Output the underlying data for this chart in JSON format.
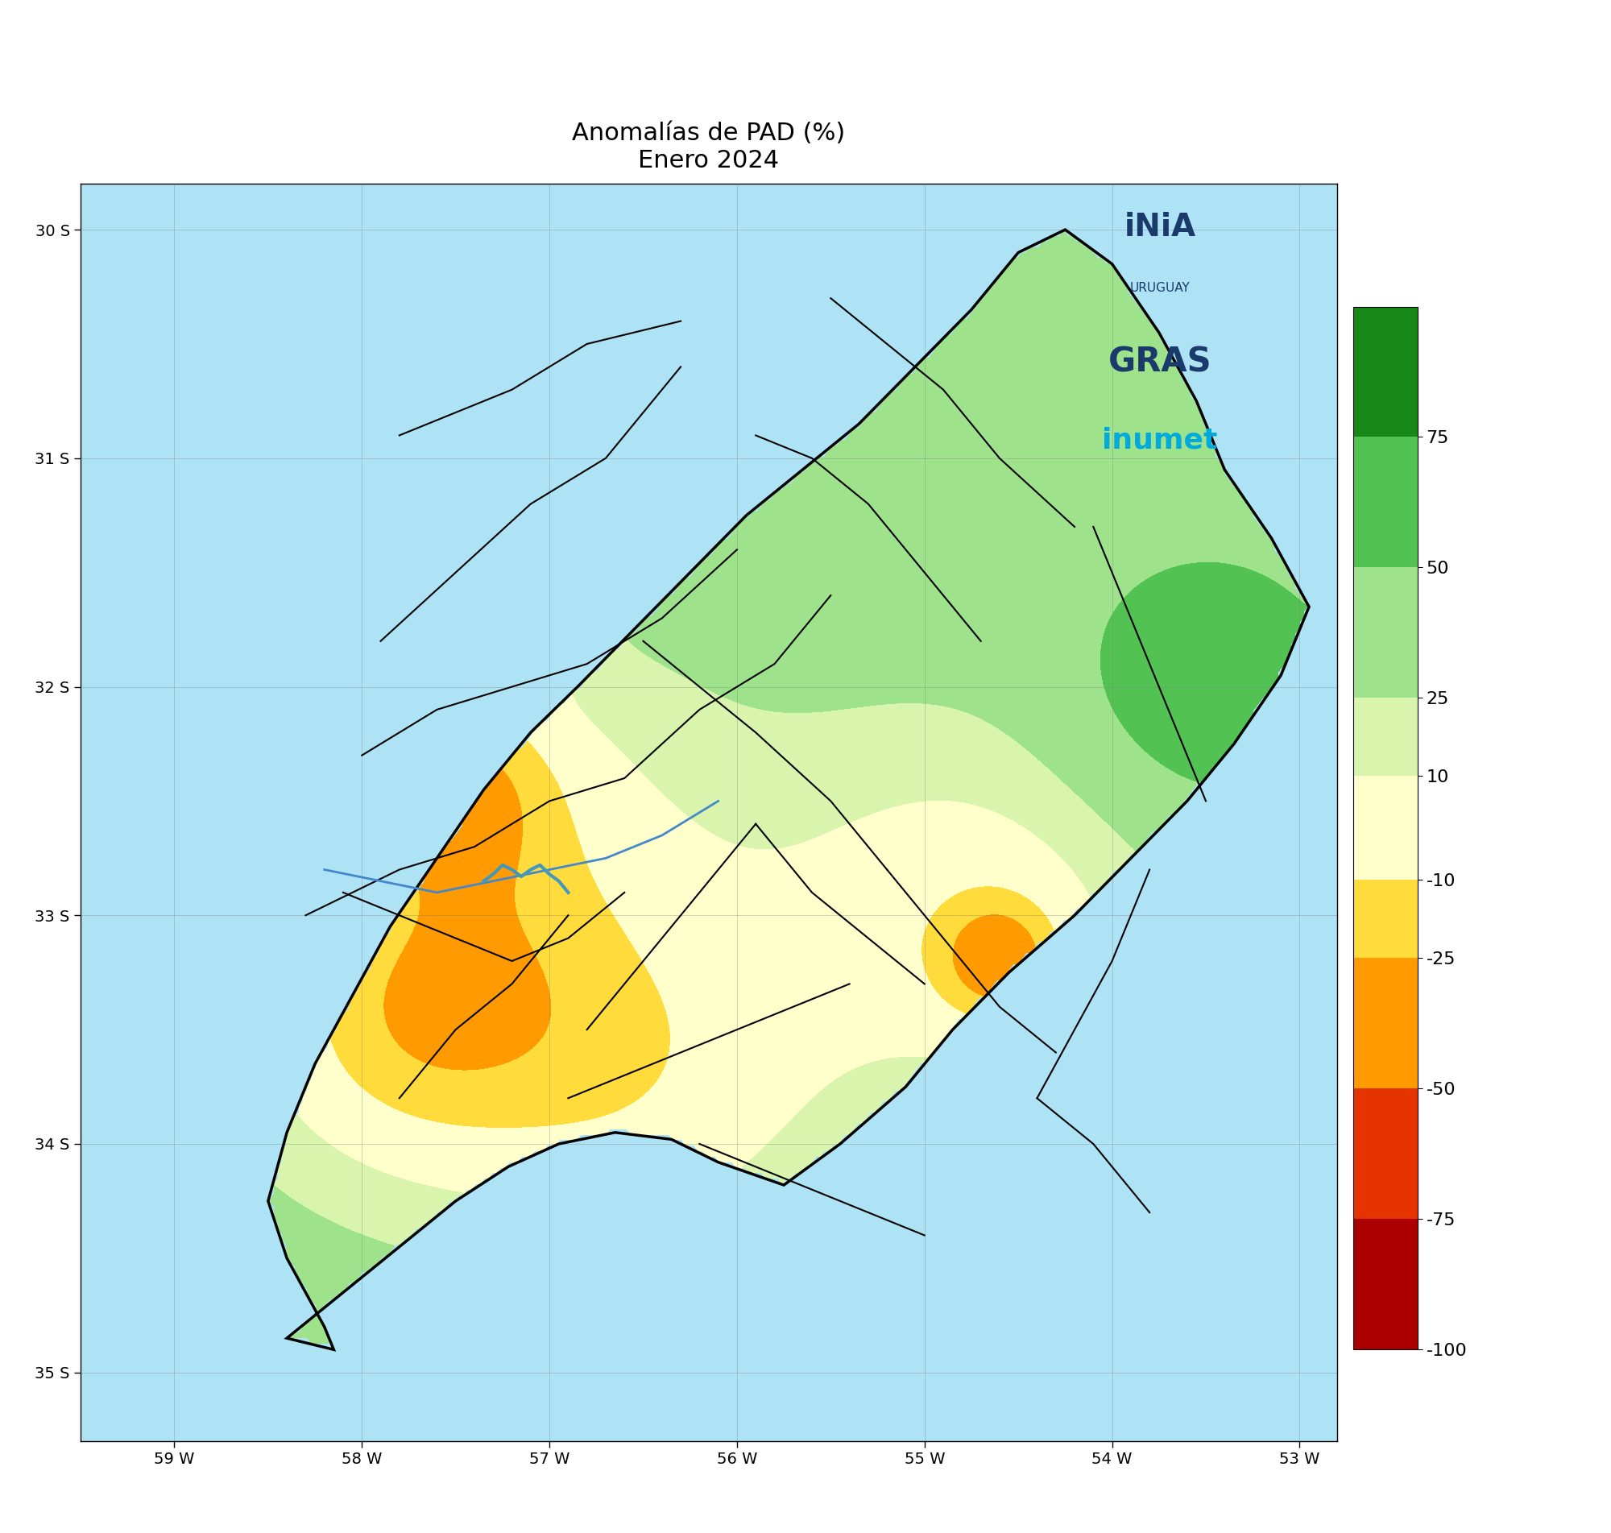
{
  "title_line1": "Anomalías de PAD (%)",
  "title_line2": "Enero 2024",
  "title_fontsize": 22,
  "subtitle_fontsize": 22,
  "xlim": [
    -59.5,
    -52.8
  ],
  "ylim": [
    -35.3,
    -29.8
  ],
  "xticks": [
    -59,
    -58,
    -57,
    -56,
    -55,
    -54,
    -53
  ],
  "yticks": [
    -30,
    -31,
    -32,
    -33,
    -34,
    -35
  ],
  "xtick_labels": [
    "59 W",
    "58 W",
    "57 W",
    "56 W",
    "55 W",
    "54 W",
    "53 W"
  ],
  "ytick_labels": [
    "30 S",
    "31 S",
    "32 S",
    "33 S",
    "34 S",
    "35 S"
  ],
  "colorbar_levels": [
    -100,
    -75,
    -50,
    -25,
    -10,
    10,
    25,
    50,
    75,
    100
  ],
  "colorbar_colors": [
    "#8B0000",
    "#CC0000",
    "#FF6600",
    "#FFCC00",
    "#FFFFCC",
    "#C8F0A0",
    "#78D878",
    "#30B030",
    "#006400"
  ],
  "colorbar_ticks": [
    -100,
    -75,
    -50,
    -25,
    -10,
    10,
    25,
    50,
    75
  ],
  "colorbar_tick_labels": [
    "-100",
    "-75",
    "-50",
    "-25",
    "-10",
    "10",
    "25",
    "50",
    "75"
  ],
  "background_color": "#ffffff",
  "ocean_color": "#ADE3F5",
  "axis_bg_color": "#ffffff",
  "map_border_color": "black",
  "figsize": [
    20.0,
    19.03
  ]
}
